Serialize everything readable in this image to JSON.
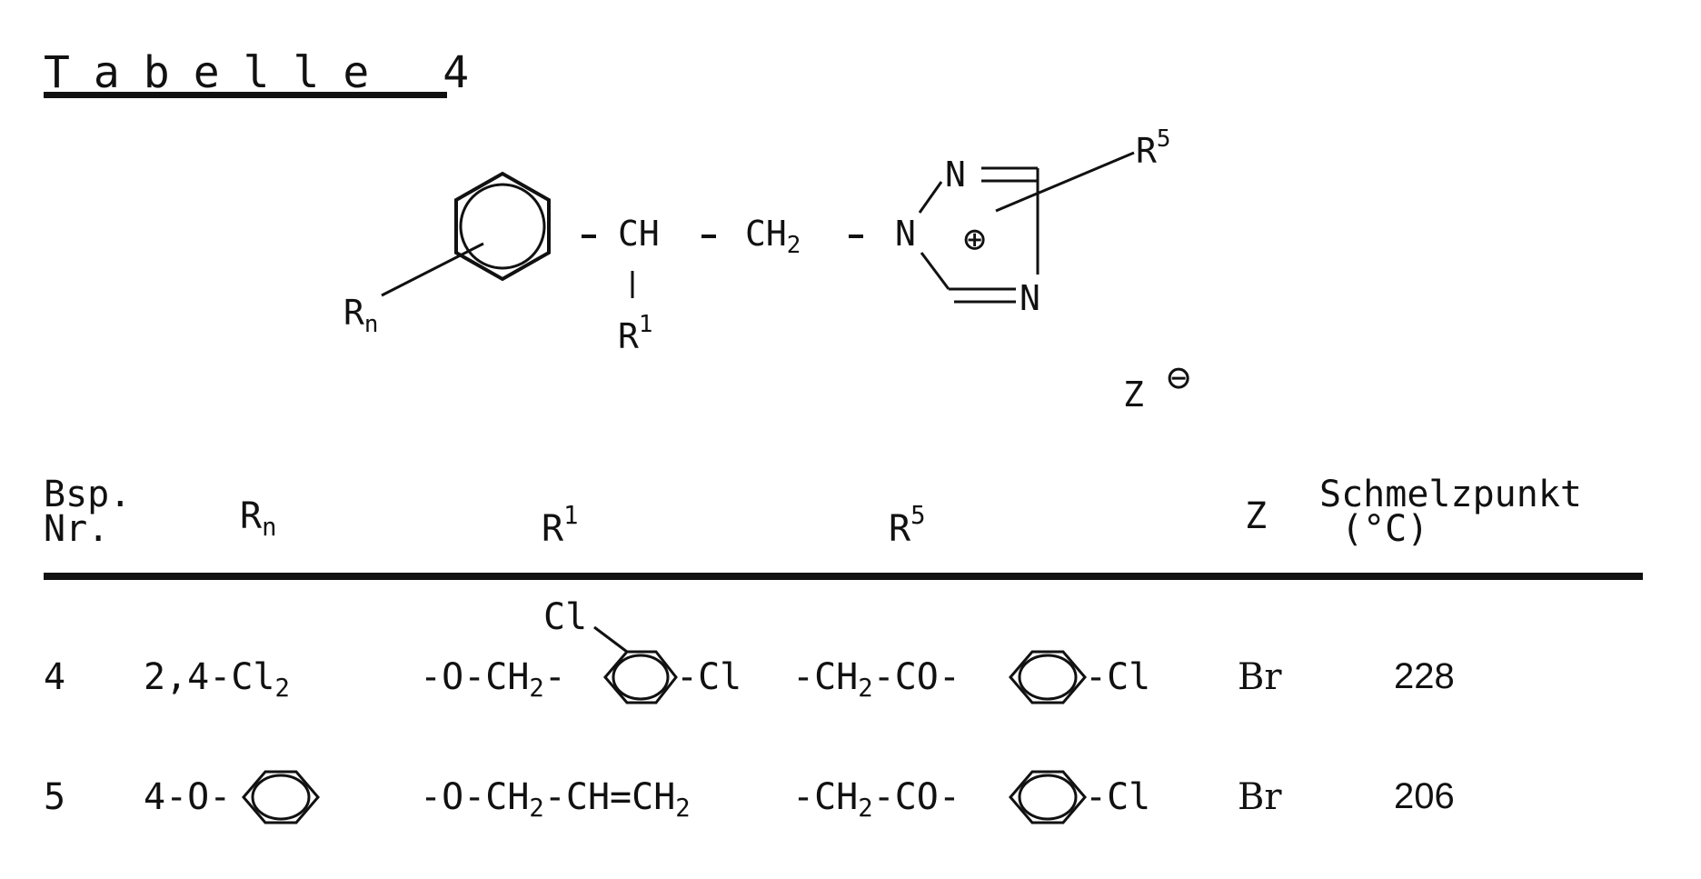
{
  "title": "Tabelle 4",
  "structure": {
    "rn_label": "R",
    "rn_sub": "n",
    "ch": "CH",
    "ch2": "CH",
    "ch2_sub": "2",
    "n1": "N",
    "n2": "N",
    "n4": "N",
    "plus": "⊕",
    "r1_label": "R",
    "r1_sup": "1",
    "r5_label": "R",
    "r5_sup": "5",
    "z_label": "Z",
    "minus": "⊖"
  },
  "table": {
    "headers": {
      "bsp_line1": "Bsp.",
      "bsp_line2": "Nr.",
      "rn": "R",
      "rn_sub": "n",
      "r1": "R",
      "r1_sup": "1",
      "r5": "R",
      "r5_sup": "5",
      "z": "Z",
      "mp_line1": "Schmelzpunkt",
      "mp_line2": "(°C)"
    },
    "rows": [
      {
        "nr": "4",
        "rn": "2,4-Cl",
        "rn_sub": "2",
        "r1_a": "-O-CH",
        "r1_sub": "2",
        "r1_cl_top": "Cl",
        "r1_cl_right": "-Cl",
        "r5_a": "-CH",
        "r5_sub": "2",
        "r5_b": "-CO-",
        "r5_cl": "-Cl",
        "z": "Br",
        "mp": "228"
      },
      {
        "nr": "5",
        "rn": "4-O-",
        "r1_a": "-O-CH",
        "r1_sub": "2",
        "r1_b": "-CH=CH",
        "r1_sub2": "2",
        "r5_a": "-CH",
        "r5_sub": "2",
        "r5_b": "-CO-",
        "r5_cl": "-Cl",
        "z": "Br",
        "mp": "206"
      }
    ]
  }
}
